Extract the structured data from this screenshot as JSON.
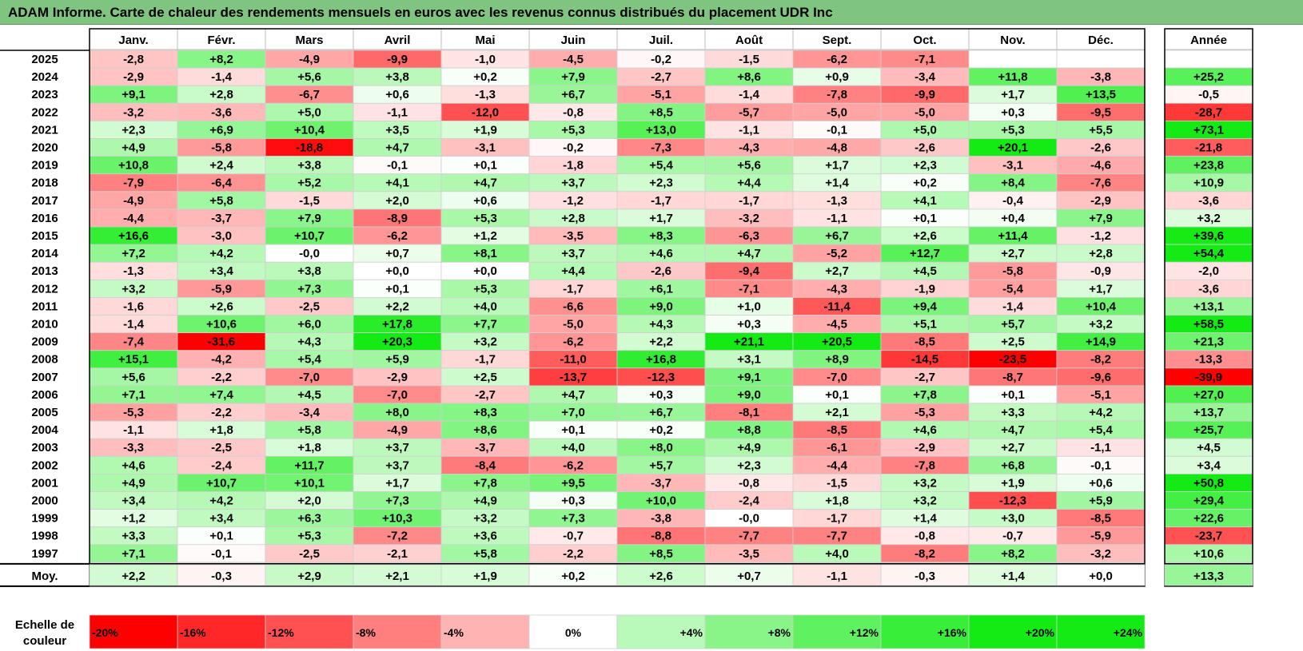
{
  "title": "ADAM Informe. Carte de chaleur des rendements mensuels en euros avec les revenus connus distribués du placement UDR Inc",
  "chart_data": {
    "type": "heatmap",
    "columns": [
      "Janv.",
      "Févr.",
      "Mars",
      "Avril",
      "Mai",
      "Juin",
      "Juil.",
      "Août",
      "Sept.",
      "Oct.",
      "Nov.",
      "Déc."
    ],
    "year_column": "Année",
    "rows": [
      {
        "label": "2025",
        "values": [
          "-2,8",
          "+8,2",
          "-4,9",
          "-9,9",
          "-1,0",
          "-4,5",
          "-0,2",
          "-1,5",
          "-6,2",
          "-7,1",
          "",
          ""
        ],
        "year": ""
      },
      {
        "label": "2024",
        "values": [
          "-2,9",
          "-1,4",
          "+5,6",
          "+3,8",
          "+0,2",
          "+7,9",
          "-2,7",
          "+8,6",
          "+0,9",
          "-3,4",
          "+11,8",
          "-3,8"
        ],
        "year": "+25,2"
      },
      {
        "label": "2023",
        "values": [
          "+9,1",
          "+2,8",
          "-6,7",
          "+0,6",
          "-1,3",
          "+6,7",
          "-5,1",
          "-1,4",
          "-7,8",
          "-9,9",
          "+1,7",
          "+13,5"
        ],
        "year": "-0,5"
      },
      {
        "label": "2022",
        "values": [
          "-3,2",
          "-3,6",
          "+5,0",
          "-1,1",
          "-12,0",
          "-0,8",
          "+8,5",
          "-5,7",
          "-5,0",
          "-5,0",
          "+0,3",
          "-9,5"
        ],
        "year": "-28,7"
      },
      {
        "label": "2021",
        "values": [
          "+2,3",
          "+6,9",
          "+10,4",
          "+3,5",
          "+1,9",
          "+5,3",
          "+13,0",
          "-1,1",
          "-0,1",
          "+5,0",
          "+5,3",
          "+5,5"
        ],
        "year": "+73,1"
      },
      {
        "label": "2020",
        "values": [
          "+4,9",
          "-5,8",
          "-18,8",
          "+4,7",
          "-3,1",
          "-0,2",
          "-7,3",
          "-4,3",
          "-4,8",
          "-2,6",
          "+20,1",
          "-2,6"
        ],
        "year": "-21,8"
      },
      {
        "label": "2019",
        "values": [
          "+10,8",
          "+2,4",
          "+3,8",
          "-0,1",
          "+0,1",
          "-1,8",
          "+5,4",
          "+5,6",
          "+1,7",
          "+2,3",
          "-3,1",
          "-4,6"
        ],
        "year": "+23,8"
      },
      {
        "label": "2018",
        "values": [
          "-7,9",
          "-6,4",
          "+5,2",
          "+4,1",
          "+4,7",
          "+3,7",
          "+2,3",
          "+4,4",
          "+1,4",
          "+0,2",
          "+8,4",
          "-7,6"
        ],
        "year": "+10,9"
      },
      {
        "label": "2017",
        "values": [
          "-4,9",
          "+5,8",
          "-1,5",
          "+2,0",
          "+0,6",
          "-1,2",
          "-1,7",
          "-1,7",
          "-1,3",
          "+4,1",
          "-0,4",
          "-2,9"
        ],
        "year": "-3,6"
      },
      {
        "label": "2016",
        "values": [
          "-4,4",
          "-3,7",
          "+7,9",
          "-8,9",
          "+5,3",
          "+2,8",
          "+1,7",
          "-3,2",
          "-1,1",
          "+0,1",
          "+0,4",
          "+7,9"
        ],
        "year": "+3,2"
      },
      {
        "label": "2015",
        "values": [
          "+16,6",
          "-3,0",
          "+10,7",
          "-6,2",
          "+1,2",
          "-3,5",
          "+8,3",
          "-6,3",
          "+6,7",
          "+2,6",
          "+11,4",
          "-1,2"
        ],
        "year": "+39,6"
      },
      {
        "label": "2014",
        "values": [
          "+7,2",
          "+4,2",
          "-0,0",
          "+0,7",
          "+8,1",
          "+3,7",
          "+4,6",
          "+4,7",
          "-5,2",
          "+12,7",
          "+2,7",
          "+2,8"
        ],
        "year": "+54,4"
      },
      {
        "label": "2013",
        "values": [
          "-1,3",
          "+3,4",
          "+3,8",
          "+0,0",
          "+0,0",
          "+4,4",
          "-2,6",
          "-9,4",
          "+2,7",
          "+4,5",
          "-5,8",
          "-0,9"
        ],
        "year": "-2,0"
      },
      {
        "label": "2012",
        "values": [
          "+3,2",
          "-5,9",
          "+7,3",
          "+0,1",
          "+5,3",
          "-1,7",
          "+6,1",
          "-7,1",
          "-4,3",
          "-1,9",
          "-5,4",
          "+1,7"
        ],
        "year": "-3,6"
      },
      {
        "label": "2011",
        "values": [
          "-1,6",
          "+2,6",
          "-2,5",
          "+2,2",
          "+4,0",
          "-6,6",
          "+9,0",
          "+1,0",
          "-11,4",
          "+9,4",
          "-1,4",
          "+10,4"
        ],
        "year": "+13,1"
      },
      {
        "label": "2010",
        "values": [
          "-1,4",
          "+10,6",
          "+6,0",
          "+17,8",
          "+7,7",
          "-5,0",
          "+4,3",
          "+0,3",
          "-4,5",
          "+5,1",
          "+5,7",
          "+3,2"
        ],
        "year": "+58,5"
      },
      {
        "label": "2009",
        "values": [
          "-7,4",
          "-31,6",
          "+4,3",
          "+20,3",
          "+3,2",
          "-6,2",
          "+2,2",
          "+21,1",
          "+20,5",
          "-8,5",
          "+2,5",
          "+14,9"
        ],
        "year": "+21,3"
      },
      {
        "label": "2008",
        "values": [
          "+15,1",
          "-4,2",
          "+5,4",
          "+5,9",
          "-1,7",
          "-11,0",
          "+16,8",
          "+3,1",
          "+8,9",
          "-14,5",
          "-23,5",
          "-8,2"
        ],
        "year": "-13,3"
      },
      {
        "label": "2007",
        "values": [
          "+5,6",
          "-2,2",
          "-7,0",
          "-2,9",
          "+2,5",
          "-13,7",
          "-12,3",
          "+9,1",
          "-7,0",
          "-2,7",
          "-8,7",
          "-9,6"
        ],
        "year": "-39,9"
      },
      {
        "label": "2006",
        "values": [
          "+7,1",
          "+7,4",
          "+4,5",
          "-7,0",
          "-2,7",
          "+4,7",
          "+0,3",
          "+9,0",
          "+0,1",
          "+7,8",
          "+0,1",
          "-5,1"
        ],
        "year": "+27,0"
      },
      {
        "label": "2005",
        "values": [
          "-5,3",
          "-2,2",
          "-3,4",
          "+8,0",
          "+8,3",
          "+7,0",
          "+6,7",
          "-8,1",
          "+2,1",
          "-5,3",
          "+3,3",
          "+4,2"
        ],
        "year": "+13,7"
      },
      {
        "label": "2004",
        "values": [
          "-1,1",
          "+1,8",
          "+5,8",
          "-4,9",
          "+8,6",
          "+0,1",
          "+0,2",
          "+8,8",
          "-8,5",
          "+4,6",
          "+4,7",
          "+5,4"
        ],
        "year": "+25,7"
      },
      {
        "label": "2003",
        "values": [
          "-3,3",
          "-2,5",
          "+1,8",
          "+3,7",
          "-3,7",
          "+4,0",
          "+8,0",
          "+4,9",
          "-6,1",
          "-2,9",
          "+2,7",
          "-1,1"
        ],
        "year": "+4,5"
      },
      {
        "label": "2002",
        "values": [
          "+4,6",
          "-2,4",
          "+11,7",
          "+3,7",
          "-8,4",
          "-6,2",
          "+5,7",
          "+2,3",
          "-4,4",
          "-7,8",
          "+6,8",
          "-0,1"
        ],
        "year": "+3,4"
      },
      {
        "label": "2001",
        "values": [
          "+4,9",
          "+10,7",
          "+10,1",
          "+1,7",
          "+7,8",
          "+9,5",
          "-3,7",
          "-0,8",
          "-1,5",
          "+3,2",
          "+1,9",
          "+0,6"
        ],
        "year": "+50,8"
      },
      {
        "label": "2000",
        "values": [
          "+3,4",
          "+4,2",
          "+2,0",
          "+7,3",
          "+4,9",
          "+0,3",
          "+10,0",
          "-2,4",
          "+1,8",
          "+3,2",
          "-12,3",
          "+5,9"
        ],
        "year": "+29,4"
      },
      {
        "label": "1999",
        "values": [
          "+1,2",
          "+3,4",
          "+6,3",
          "+10,3",
          "+3,2",
          "+7,3",
          "-3,8",
          "-0,0",
          "-1,7",
          "+1,4",
          "+3,0",
          "-8,5"
        ],
        "year": "+22,6"
      },
      {
        "label": "1998",
        "values": [
          "+3,3",
          "+0,1",
          "+5,3",
          "-7,2",
          "+3,6",
          "-0,7",
          "-8,8",
          "-7,7",
          "-7,7",
          "-0,8",
          "-0,7",
          "-5,9"
        ],
        "year": "-23,7"
      },
      {
        "label": "1997",
        "values": [
          "+7,1",
          "-0,1",
          "-2,5",
          "-2,1",
          "+5,8",
          "-2,2",
          "+8,5",
          "-3,5",
          "+4,0",
          "-8,2",
          "+8,2",
          "-3,2"
        ],
        "year": "+10,6"
      }
    ],
    "average": {
      "label": "Moy.",
      "values": [
        "+2,2",
        "-0,3",
        "+2,9",
        "+2,1",
        "+1,9",
        "+0,2",
        "+2,6",
        "+0,7",
        "-1,1",
        "-0,3",
        "+1,4",
        "+0,0"
      ],
      "year": "+13,3"
    },
    "color_scale": {
      "label": "Echelle de couleur",
      "stops": [
        "-20%",
        "-16%",
        "-12%",
        "-8%",
        "-4%",
        "0%",
        "+4%",
        "+8%",
        "+12%",
        "+16%",
        "+20%",
        "+24%"
      ],
      "negative_color": "#ff0000",
      "positive_color": "#00ff00",
      "neutral_color": "#ffffff"
    }
  }
}
